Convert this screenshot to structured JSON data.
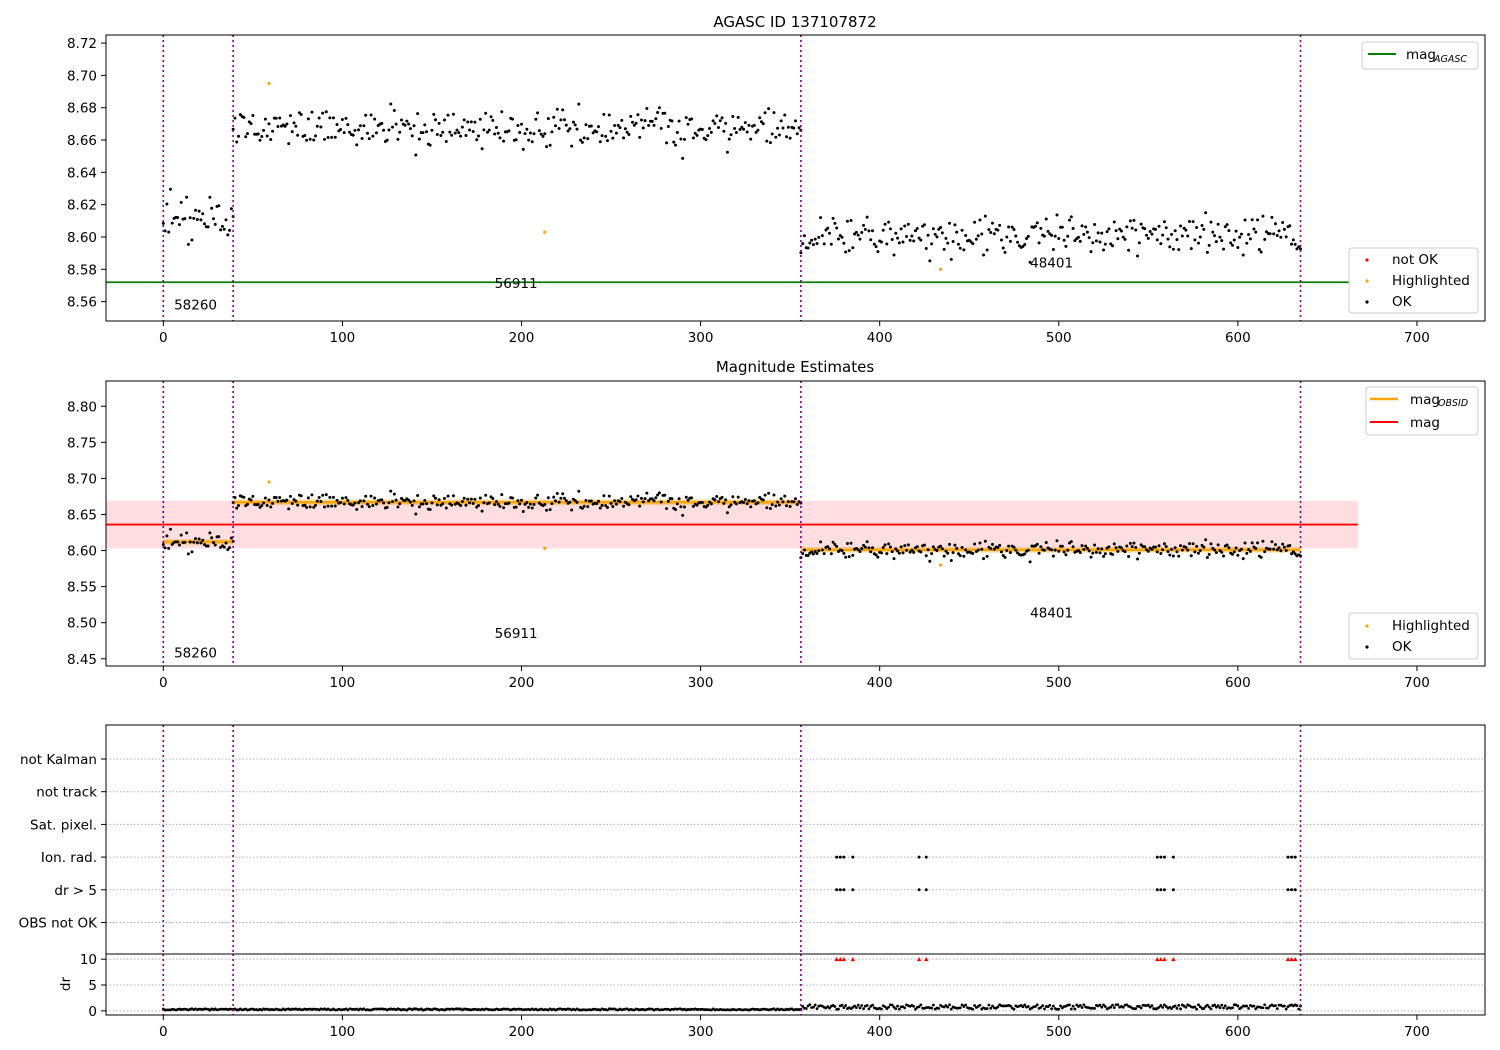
{
  "chart_data": [
    {
      "type": "scatter",
      "title": "AGASC ID 137107872",
      "xlim": [
        -32,
        738
      ],
      "ylim": [
        8.548,
        8.725
      ],
      "xticks": [
        0,
        100,
        200,
        300,
        400,
        500,
        600,
        700
      ],
      "yticks": [
        8.56,
        8.58,
        8.6,
        8.62,
        8.64,
        8.66,
        8.68,
        8.7,
        8.72
      ],
      "ytick_labels": [
        "8.56",
        "8.58",
        "8.60",
        "8.62",
        "8.64",
        "8.66",
        "8.68",
        "8.70",
        "8.72"
      ],
      "obs_boundaries": [
        0,
        39,
        356,
        635
      ],
      "obs_labels": [
        {
          "text": "58260",
          "x": 18,
          "y": 8.555
        },
        {
          "text": "56911",
          "x": 197,
          "y": 8.5685
        },
        {
          "text": "48401",
          "x": 496,
          "y": 8.581
        }
      ],
      "segments": [
        {
          "x0": 0,
          "x1": 39,
          "mean": 8.612,
          "spread": 0.008
        },
        {
          "x0": 39,
          "x1": 356,
          "mean": 8.667,
          "spread": 0.008
        },
        {
          "x0": 356,
          "x1": 635,
          "mean": 8.601,
          "spread": 0.008
        }
      ],
      "mag_agasc": 8.572,
      "mag_agasc_span": [
        -32,
        667
      ],
      "highlighted_points": [
        [
          59,
          8.695
        ],
        [
          213,
          8.603
        ],
        [
          434,
          8.58
        ]
      ],
      "legend_upper": {
        "entry": "mag",
        "subscript": "AGASC"
      },
      "legend_lower": [
        "not OK",
        "Highlighted",
        "OK"
      ],
      "colors": {
        "ok": "#000000",
        "highlighted": "#ffa500",
        "not_ok": "#ff0000",
        "agasc_line": "#008000",
        "boundary": "#800080"
      }
    },
    {
      "type": "scatter",
      "title": "Magnitude Estimates",
      "xlim": [
        -32,
        738
      ],
      "ylim": [
        8.44,
        8.835
      ],
      "xticks": [
        0,
        100,
        200,
        300,
        400,
        500,
        600,
        700
      ],
      "yticks": [
        8.45,
        8.5,
        8.55,
        8.6,
        8.65,
        8.7,
        8.75,
        8.8
      ],
      "ytick_labels": [
        "8.45",
        "8.50",
        "8.55",
        "8.60",
        "8.65",
        "8.70",
        "8.75",
        "8.80"
      ],
      "obs_labels": [
        {
          "text": "58260",
          "x": 18,
          "y": 8.452
        },
        {
          "text": "56911",
          "x": 197,
          "y": 8.479
        },
        {
          "text": "48401",
          "x": 496,
          "y": 8.507
        }
      ],
      "mag": 8.636,
      "mag_band": [
        8.603,
        8.669
      ],
      "mag_span": [
        -32,
        667
      ],
      "obsid_mags": [
        {
          "x0": 0,
          "x1": 39,
          "mag": 8.612
        },
        {
          "x0": 39,
          "x1": 356,
          "mag": 8.667
        },
        {
          "x0": 356,
          "x1": 635,
          "mag": 8.601
        }
      ],
      "legend_upper": [
        {
          "entry": "mag",
          "subscript": "OBSID"
        },
        {
          "entry": "mag",
          "subscript": ""
        }
      ],
      "legend_lower": [
        "Highlighted",
        "OK"
      ],
      "colors": {
        "obsid_line": "#ffa500",
        "mag_line": "#ff0000",
        "mag_band": "#ffb6bc"
      }
    },
    {
      "type": "scatter",
      "flag_rows": [
        "not Kalman",
        "not track",
        "Sat. pixel.",
        "Ion. rad.",
        "dr > 5",
        "OBS not OK"
      ],
      "flagged_x": [
        376,
        378,
        380,
        385,
        422,
        426,
        555,
        557,
        559,
        564,
        628,
        630,
        632
      ],
      "flagged_rows": [
        "Ion. rad.",
        "dr > 5"
      ]
    },
    {
      "type": "scatter",
      "ylabel": "dr",
      "ylim": [
        -0.8,
        11
      ],
      "yticks": [
        0,
        5,
        10
      ],
      "ytick_labels": [
        "0",
        "5",
        "10"
      ],
      "xticks": [
        0,
        100,
        200,
        300,
        400,
        500,
        600,
        700
      ],
      "xtick_labels": [
        "0",
        "100",
        "200",
        "300",
        "400",
        "500",
        "600",
        "700"
      ],
      "clipped_dr": 10,
      "flagged_x": [
        376,
        378,
        380,
        385,
        422,
        426,
        555,
        557,
        559,
        564,
        628,
        630,
        632
      ]
    }
  ]
}
